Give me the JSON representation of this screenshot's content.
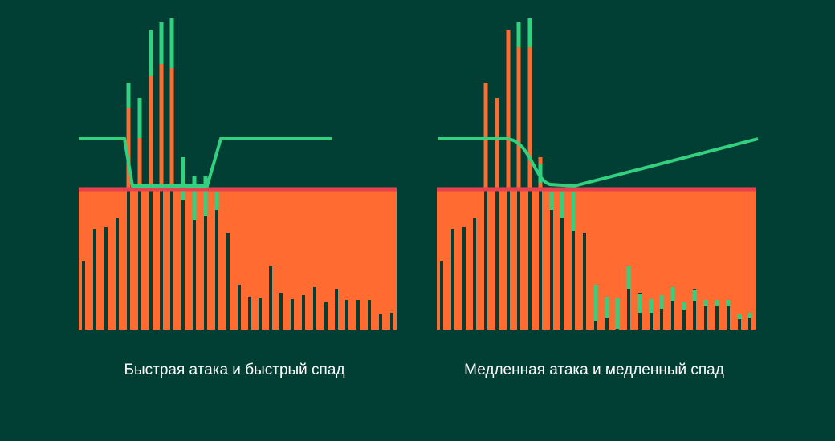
{
  "captions": [
    "Быстрая атака и быстрый спад",
    "Медленная атака и медленный спад"
  ]
}
